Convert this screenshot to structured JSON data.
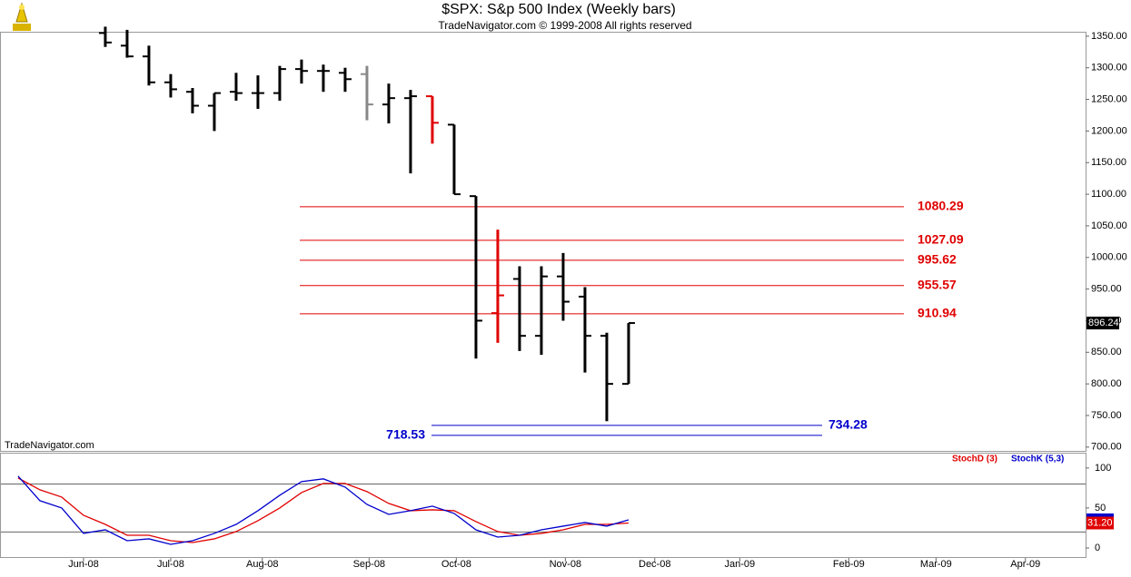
{
  "chart_data": [
    {
      "type": "ohlc",
      "title": "$SPX:  S&p 500 Index  (Weekly bars)",
      "subtitle": "TradeNavigator.com © 1999-2008 All rights reserved",
      "watermark": "TradeNavigator.com",
      "x": [
        4,
        5,
        6,
        7,
        8,
        9,
        10,
        11,
        12,
        13,
        14,
        15,
        16,
        17,
        18,
        19,
        20,
        21,
        22,
        23,
        24,
        25,
        26,
        27,
        28
      ],
      "open": [
        1355,
        1335,
        1318,
        1277,
        1262,
        1240,
        1262,
        1260,
        1260,
        1298,
        1295,
        1292,
        1290,
        1242,
        1252,
        1255,
        1210,
        1097,
        912,
        966,
        876,
        970,
        938,
        876,
        800
      ],
      "high": [
        1365,
        1360,
        1335,
        1290,
        1268,
        1260,
        1292,
        1288,
        1303,
        1313,
        1305,
        1300,
        1303,
        1275,
        1265,
        1255,
        1210,
        1097,
        1044,
        986,
        986,
        1007,
        953,
        881,
        896.24
      ],
      "low": [
        1333,
        1316,
        1272,
        1253,
        1228,
        1200,
        1248,
        1235,
        1248,
        1275,
        1262,
        1262,
        1217,
        1212,
        1133,
        1180,
        1100,
        840,
        865,
        852,
        846,
        900,
        818,
        741,
        800
      ],
      "close": [
        1340,
        1318,
        1277,
        1266,
        1240,
        1260,
        1260,
        1260,
        1298,
        1295,
        1295,
        1282,
        1242,
        1252,
        1255,
        1213,
        1100,
        900,
        940,
        876,
        970,
        930,
        876,
        800,
        896.24
      ],
      "close_labels": [
        null,
        null,
        null,
        null,
        null,
        null,
        null,
        null,
        null,
        null,
        null,
        null,
        null,
        null,
        null,
        null,
        null,
        null,
        null,
        null,
        null,
        null,
        null,
        null,
        "896.24"
      ],
      "bar_colors": [
        "#000",
        "#000",
        "#000",
        "#000",
        "#000",
        "#000",
        "#000",
        "#000",
        "#000",
        "#000",
        "#000",
        "#000",
        "#888",
        "#000",
        "#000",
        "#e00000",
        "#000",
        "#000",
        "#e00000",
        "#000",
        "#000",
        "#000",
        "#000",
        "#000",
        "#000"
      ],
      "xlim": [
        -0.83,
        48.96
      ],
      "xticks": [
        {
          "value": 3,
          "label": "Jun-08"
        },
        {
          "value": 7,
          "label": "Jul-08"
        },
        {
          "value": 11.2,
          "label": "Aug-08"
        },
        {
          "value": 16.1,
          "label": "Sep-08"
        },
        {
          "value": 20.1,
          "label": "Oct-08"
        },
        {
          "value": 25.1,
          "label": "Nov-08"
        },
        {
          "value": 29.2,
          "label": "Dec-08"
        },
        {
          "value": 33.1,
          "label": "Jan-09"
        },
        {
          "value": 38.1,
          "label": "Feb-09"
        },
        {
          "value": 42.1,
          "label": "Mar-09"
        },
        {
          "value": 46.2,
          "label": "Apr-09"
        }
      ],
      "ylim": [
        694,
        1357
      ],
      "yticks": [
        {
          "value": 700,
          "label": "700.00"
        },
        {
          "value": 750,
          "label": "750.00"
        },
        {
          "value": 800,
          "label": "800.00"
        },
        {
          "value": 850,
          "label": "850.00"
        },
        {
          "value": 900,
          "label": "900.00"
        },
        {
          "value": 950,
          "label": "950.00"
        },
        {
          "value": 1000,
          "label": "1000.00"
        },
        {
          "value": 1050,
          "label": "1050.00"
        },
        {
          "value": 1100,
          "label": "1100.00"
        },
        {
          "value": 1150,
          "label": "1150.00"
        },
        {
          "value": 1200,
          "label": "1200.00"
        },
        {
          "value": 1250,
          "label": "1250.00"
        },
        {
          "value": 1300,
          "label": "1300.00"
        },
        {
          "value": 1350,
          "label": "1350.00"
        }
      ],
      "resistance_levels": {
        "color": "#e00000",
        "values": [
          1080.29,
          1027.09,
          995.62,
          955.57,
          910.94
        ]
      },
      "support_levels": {
        "color": "#0000cc",
        "values": [
          734.28,
          718.53
        ]
      }
    },
    {
      "type": "line",
      "x": [
        0,
        1,
        2,
        3,
        4,
        5,
        6,
        7,
        8,
        9,
        10,
        11,
        12,
        13,
        14,
        15,
        16,
        17,
        18,
        19,
        20,
        21,
        22,
        23,
        24,
        25,
        26,
        27,
        28
      ],
      "series": [
        {
          "name": "StochD (3)",
          "color": "#e00000",
          "values": [
            87.5,
            72.7,
            63.6,
            40.9,
            29.5,
            15.9,
            15.9,
            9.1,
            6.8,
            11.4,
            20.5,
            34.1,
            50,
            69.3,
            80.7,
            80.7,
            70.5,
            55.7,
            46.6,
            47.7,
            46.6,
            33,
            20.5,
            15.9,
            18.2,
            22.7,
            29.5,
            29.5,
            31.2
          ],
          "value_labels": [
            null,
            null,
            null,
            null,
            null,
            null,
            null,
            null,
            null,
            null,
            null,
            null,
            null,
            null,
            null,
            null,
            null,
            null,
            null,
            null,
            null,
            null,
            null,
            null,
            null,
            null,
            null,
            null,
            "31.20"
          ]
        },
        {
          "name": "StochK (5,3)",
          "color": "#0000cc",
          "values": [
            89.8,
            59.1,
            50,
            18.2,
            22.7,
            9.1,
            11.4,
            4.5,
            9.1,
            18.2,
            29.5,
            46.6,
            65.9,
            83,
            86.4,
            76.1,
            54.5,
            42,
            46.6,
            52.3,
            43.2,
            22.7,
            13.6,
            15.9,
            22.7,
            27.3,
            31.8,
            27.3,
            35.2
          ]
        }
      ],
      "xlim": [
        -0.83,
        48.96
      ],
      "ylim": [
        -12.5,
        118
      ],
      "yticks": [
        0,
        50,
        100
      ],
      "levels": [
        20,
        80
      ]
    }
  ]
}
